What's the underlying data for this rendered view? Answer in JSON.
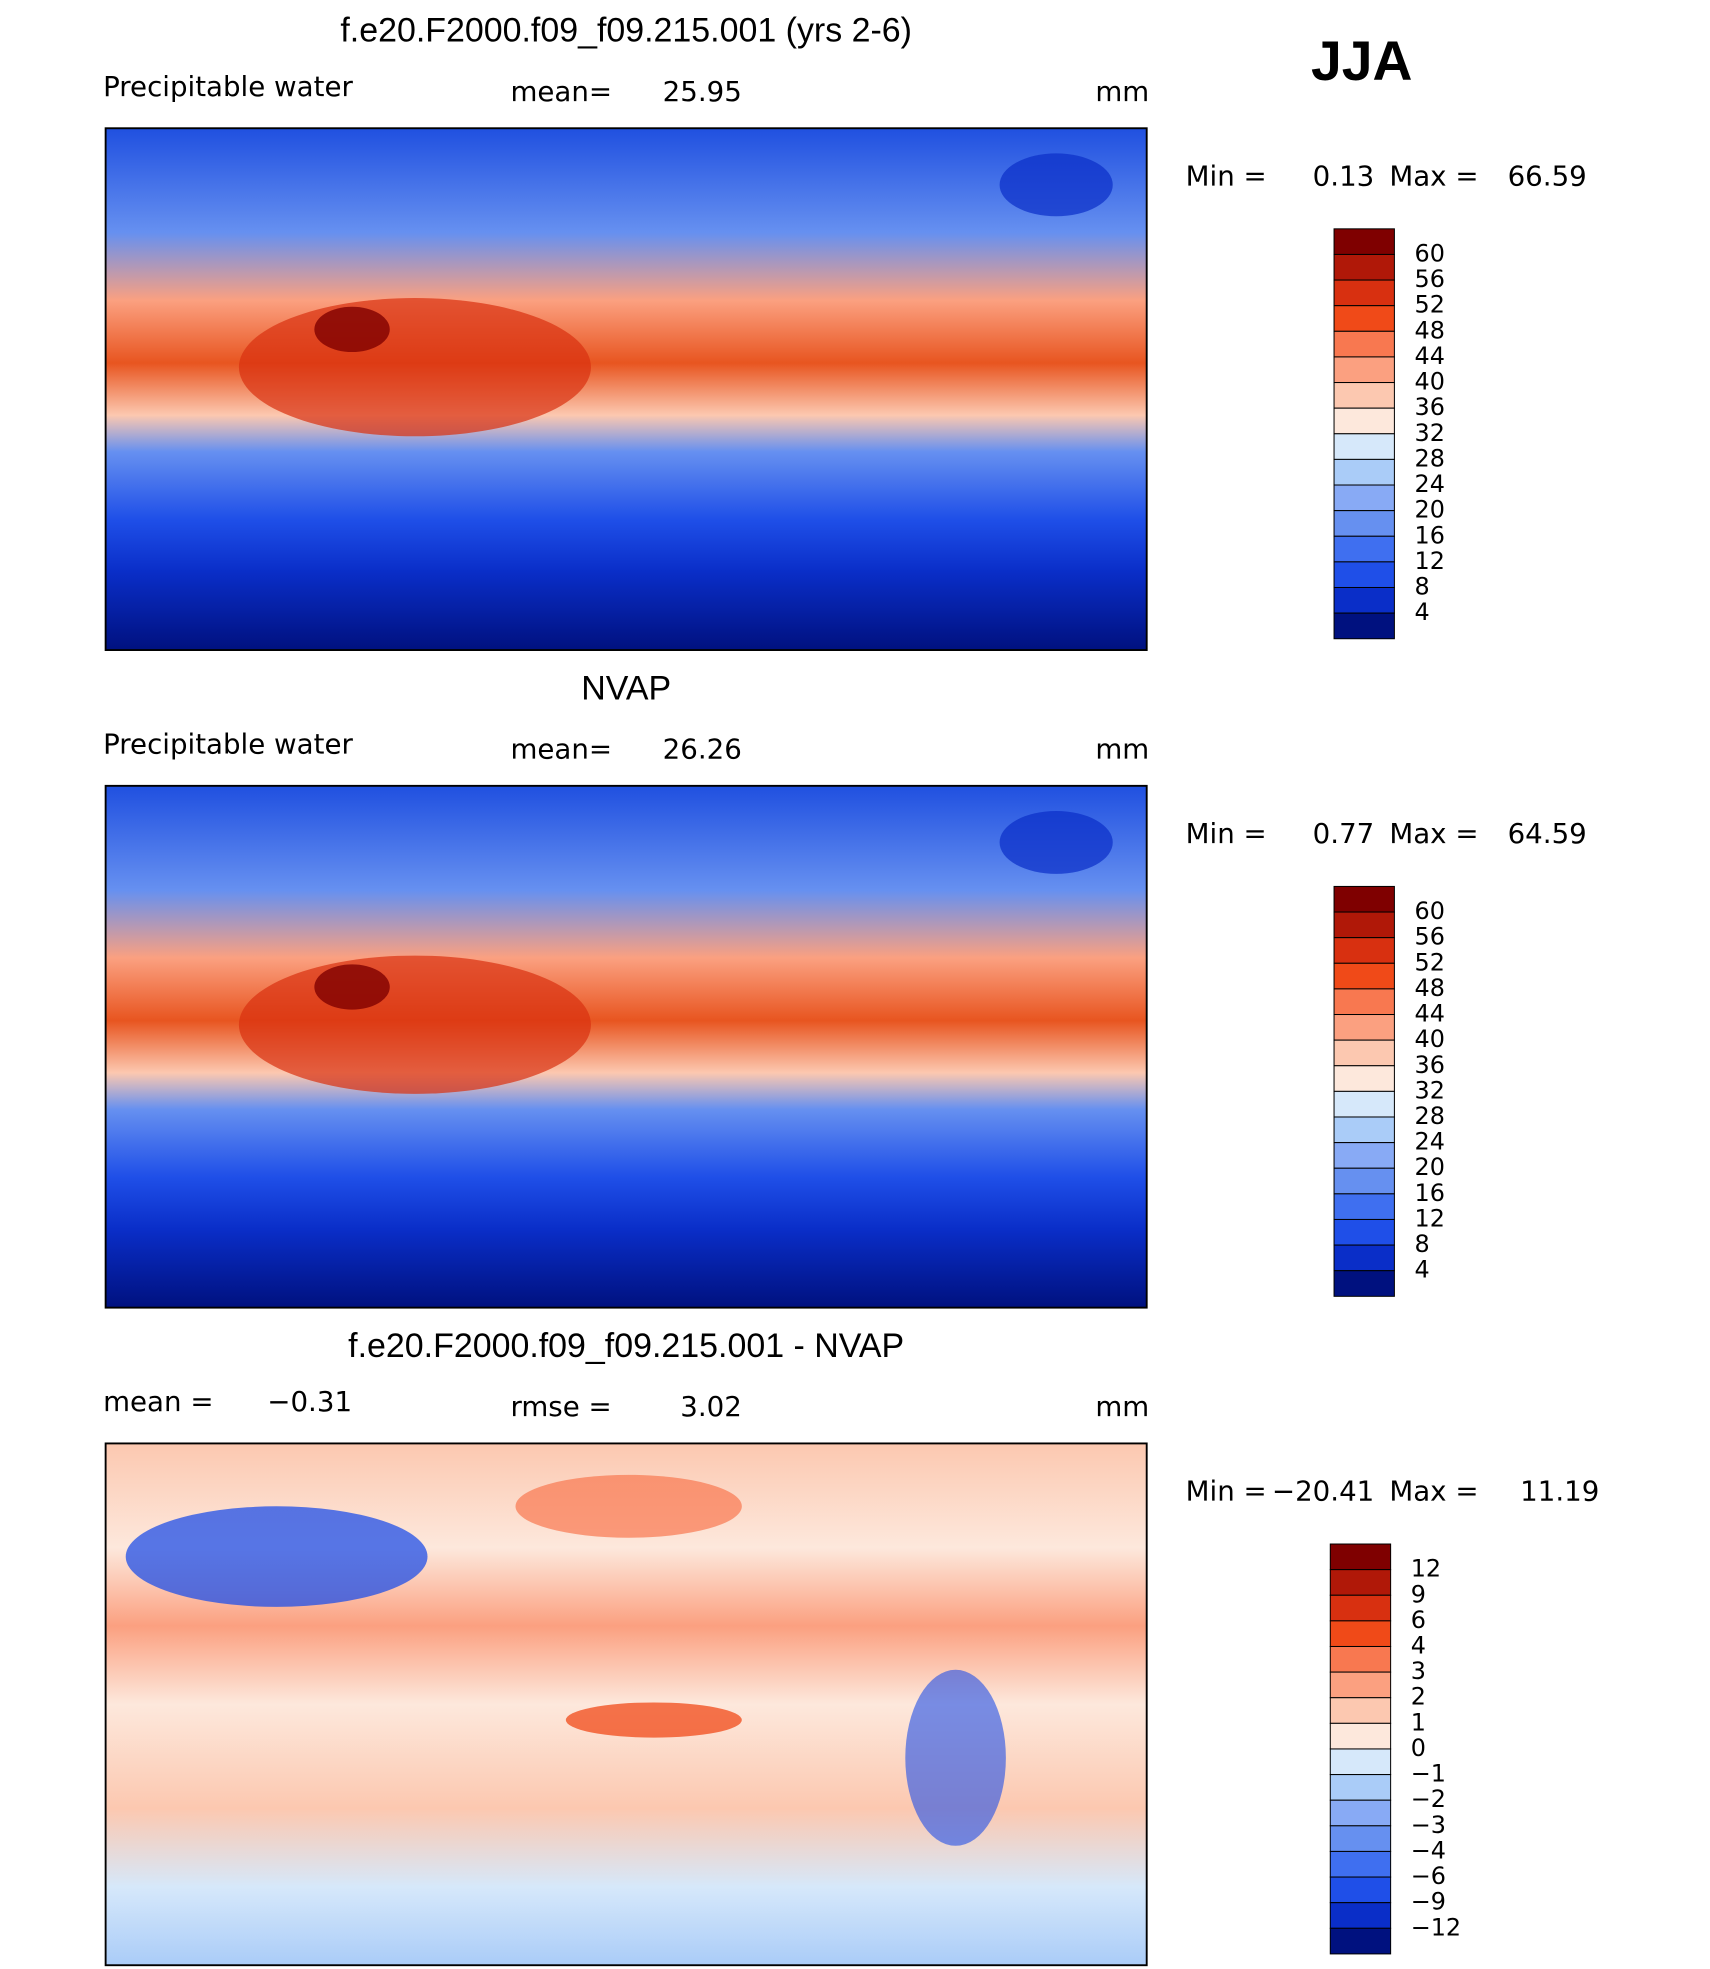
{
  "season": "JJA",
  "panels": [
    {
      "title": "f.e20.F2000.f09_f09.215.001 (yrs 2-6)",
      "left_label": "Precipitable  water",
      "center_label": "mean=",
      "center_value": "25.95",
      "units": "mm",
      "min_label": "Min  =",
      "min_value": "0.13",
      "max_label": "Max  =",
      "max_value": "66.59",
      "colorbar": {
        "levels": [
          "60",
          "56",
          "52",
          "48",
          "44",
          "40",
          "36",
          "32",
          "28",
          "24",
          "20",
          "16",
          "12",
          "8",
          "4"
        ],
        "colors": [
          "#7f0000",
          "#b01808",
          "#d83010",
          "#f04a18",
          "#f87850",
          "#fba080",
          "#fcc8b0",
          "#fde8dc",
          "#d6e8fa",
          "#aaccf8",
          "#88aaf5",
          "#6690f0",
          "#3f6ff0",
          "#1f4fe8",
          "#0a2ec8",
          "#00117f"
        ]
      }
    },
    {
      "title": "NVAP",
      "left_label": "Precipitable  water",
      "center_label": "mean=",
      "center_value": "26.26",
      "units": "mm",
      "min_label": "Min  =",
      "min_value": "0.77",
      "max_label": "Max  =",
      "max_value": "64.59",
      "colorbar": {
        "levels": [
          "60",
          "56",
          "52",
          "48",
          "44",
          "40",
          "36",
          "32",
          "28",
          "24",
          "20",
          "16",
          "12",
          "8",
          "4"
        ],
        "colors": [
          "#7f0000",
          "#b01808",
          "#d83010",
          "#f04a18",
          "#f87850",
          "#fba080",
          "#fcc8b0",
          "#fde8dc",
          "#d6e8fa",
          "#aaccf8",
          "#88aaf5",
          "#6690f0",
          "#3f6ff0",
          "#1f4fe8",
          "#0a2ec8",
          "#00117f"
        ]
      }
    },
    {
      "title": "f.e20.F2000.f09_f09.215.001 - NVAP",
      "left_label": "mean  =",
      "left_value": "−0.31",
      "center_label": "rmse  =",
      "center_value": "3.02",
      "units": "mm",
      "min_label": "Min  =",
      "min_value": "−20.41",
      "max_label": "Max  =",
      "max_value": "11.19",
      "colorbar": {
        "levels": [
          "12",
          "9",
          "6",
          "4",
          "3",
          "2",
          "1",
          "0",
          "−1",
          "−2",
          "−3",
          "−4",
          "−6",
          "−9",
          "−12"
        ],
        "colors": [
          "#7f0000",
          "#b01808",
          "#d83010",
          "#f04a18",
          "#f87850",
          "#fba080",
          "#fcc8b0",
          "#fde8dc",
          "#d6e8fa",
          "#aaccf8",
          "#88aaf5",
          "#6690f0",
          "#3f6ff0",
          "#1f4fe8",
          "#0a2ec8",
          "#00117f"
        ]
      }
    }
  ]
}
